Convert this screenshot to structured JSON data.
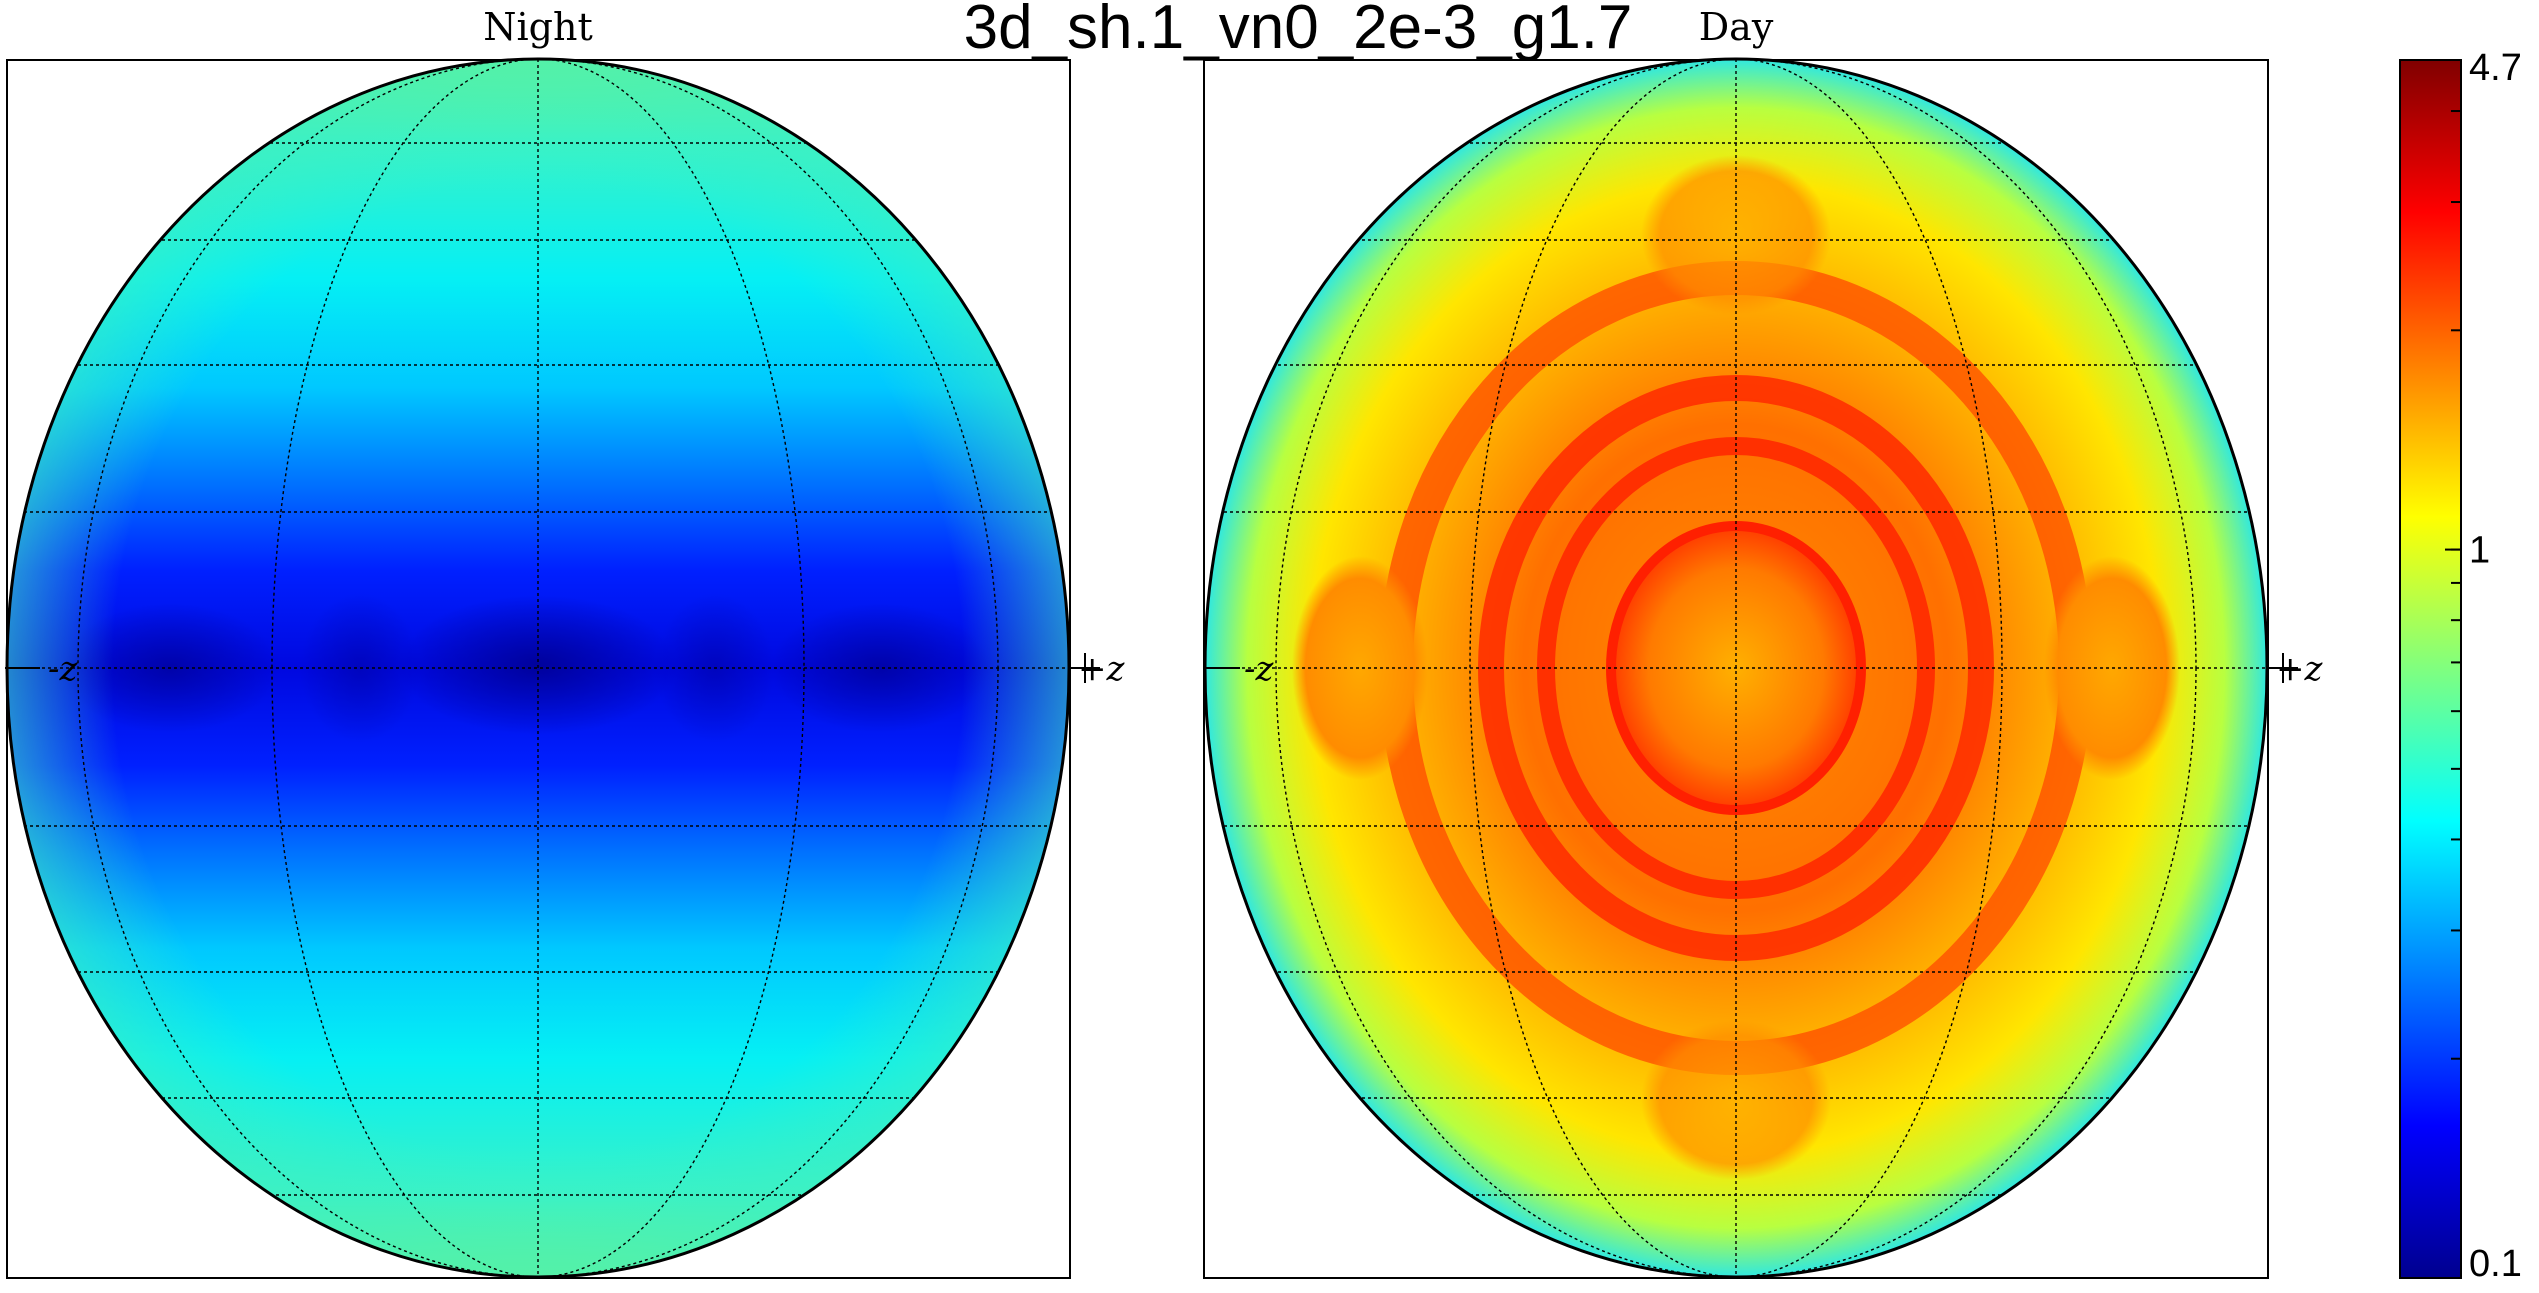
{
  "chart_data": {
    "type": "heatmap",
    "title": "3d_sh.1_vn0_2e-3_g1.7",
    "colormap": "jet",
    "color_scale": "log",
    "color_range": [
      0.1,
      4.7
    ],
    "colorbar_ticks": [
      {
        "value": 4.7,
        "label": "4.7"
      },
      {
        "value": 1,
        "label": "1"
      },
      {
        "value": 0.1,
        "label": "0.1"
      }
    ],
    "panels": [
      {
        "name": "Night",
        "label": "Night",
        "left_label": "-z",
        "right_label": "+z",
        "grid": true,
        "pattern": "equatorial band minimum (~0.12) rising to ~0.5 toward the poles",
        "center_value": 0.12,
        "edge_value": 0.55
      },
      {
        "name": "Day",
        "label": "Day",
        "left_label": "-z",
        "right_label": "+z",
        "grid": true,
        "pattern": "central disk ~2.2 with concentric rings up to ~3.5, falling to ~0.5 at the limb",
        "center_value": 2.2,
        "ring_value": 3.5,
        "edge_value": 0.5
      }
    ]
  }
}
